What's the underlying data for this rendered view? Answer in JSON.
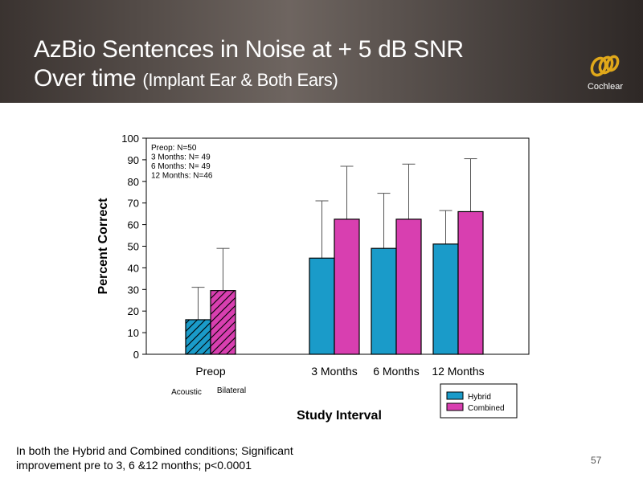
{
  "slide": {
    "title_main": "AzBio Sentences in Noise at + 5 dB SNR",
    "title_line2": "Over time",
    "title_sub": "(Implant Ear & Both Ears)",
    "logo_text": "Cochlear",
    "footnote_line1": "In both the Hybrid and Combined conditions; Significant",
    "footnote_line2": "improvement pre to 3, 6 &12 months; p<0.0001",
    "page_number": "57",
    "brand_color": "#e0a81a"
  },
  "chart_data": {
    "type": "bar",
    "xlabel": "Study Interval",
    "ylabel": "Percent Correct",
    "ylim": [
      0,
      100
    ],
    "yticks": [
      0,
      10,
      20,
      30,
      40,
      50,
      60,
      70,
      80,
      90,
      100
    ],
    "categories": [
      "Preop",
      "3 Months",
      "6 Months",
      "12 Months"
    ],
    "series": [
      {
        "name": "Hybrid",
        "color": "#1a9bc9",
        "values": [
          16,
          44.5,
          49,
          51
        ],
        "error_upper": [
          31,
          71,
          74.5,
          66.5
        ]
      },
      {
        "name": "Combined",
        "color": "#d83fb0",
        "values": [
          29.5,
          62.5,
          62.5,
          66
        ],
        "error_upper": [
          49,
          87,
          88,
          90.5
        ]
      }
    ],
    "preop_labels": [
      "Acoustic",
      "Bilateral"
    ],
    "preop_pattern": "hatched",
    "annotation": [
      "Preop: N=50",
      "3 Months: N= 49",
      "6 Months: N= 49",
      "12 Months: N=46"
    ],
    "legend_position": "bottom-right",
    "grid": false
  }
}
